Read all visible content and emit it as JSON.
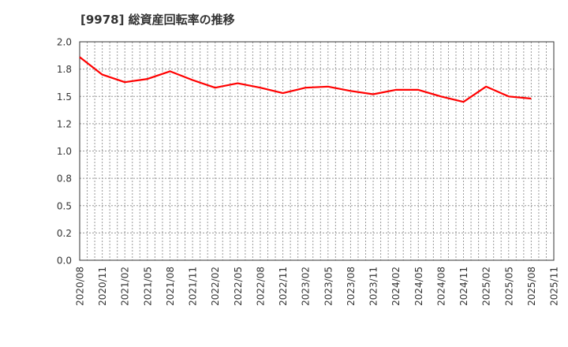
{
  "chart_data": {
    "type": "line",
    "title": "[9978]  総資産回転率の推移",
    "xlabel": "",
    "ylabel": "",
    "ylim": [
      0.0,
      2.0
    ],
    "y_ticks": [
      0.0,
      0.25,
      0.5,
      0.75,
      1.0,
      1.25,
      1.5,
      1.75,
      2.0
    ],
    "y_tick_labels": [
      "0.0",
      "0.2",
      "0.5",
      "0.8",
      "1.0",
      "1.2",
      "1.5",
      "1.8",
      "2.0"
    ],
    "x_tick_labels": [
      "2020/08",
      "2020/11",
      "2021/02",
      "2021/05",
      "2021/08",
      "2021/11",
      "2022/02",
      "2022/05",
      "2022/08",
      "2022/11",
      "2023/02",
      "2023/05",
      "2023/08",
      "2023/11",
      "2024/02",
      "2024/05",
      "2024/08",
      "2024/11",
      "2025/02",
      "2025/05",
      "2025/08",
      "2025/11"
    ],
    "grid": true,
    "legend": null,
    "series": [
      {
        "name": "総資産回転率",
        "color": "#ff0000",
        "x": [
          "2020/08",
          "2020/11",
          "2021/02",
          "2021/05",
          "2021/08",
          "2021/11",
          "2022/02",
          "2022/05",
          "2022/08",
          "2022/11",
          "2023/02",
          "2023/05",
          "2023/08",
          "2023/11",
          "2024/02",
          "2024/05",
          "2024/08",
          "2024/11",
          "2025/02",
          "2025/05",
          "2025/08"
        ],
        "values": [
          1.86,
          1.7,
          1.63,
          1.66,
          1.73,
          1.65,
          1.58,
          1.62,
          1.58,
          1.53,
          1.58,
          1.59,
          1.55,
          1.52,
          1.56,
          1.56,
          1.5,
          1.45,
          1.59,
          1.5,
          1.48
        ]
      }
    ]
  },
  "colors": {
    "line": "#ff0000",
    "frame": "#333333",
    "grid": "#999999",
    "text": "#333333"
  }
}
